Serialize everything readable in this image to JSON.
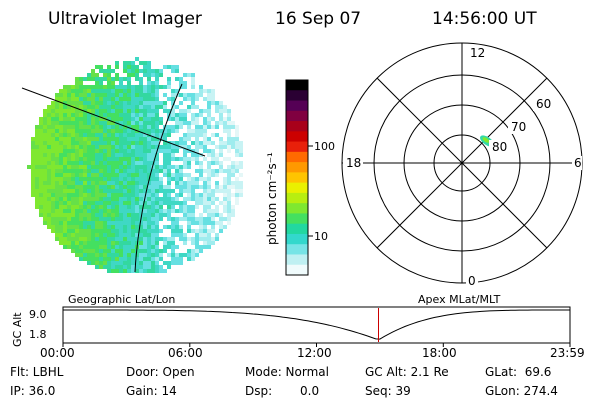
{
  "header": {
    "title": "Ultraviolet Imager",
    "date": "16 Sep 07",
    "time": "14:56:00 UT"
  },
  "colorbar": {
    "unit_label": "photon cm⁻²s⁻¹",
    "ticks": [
      "100",
      "10"
    ],
    "colors": [
      "#000000",
      "#2a0033",
      "#550055",
      "#800040",
      "#a8001a",
      "#cc0000",
      "#e8200a",
      "#ff6a00",
      "#ff9900",
      "#ffc400",
      "#eaf000",
      "#b8ee10",
      "#7fe830",
      "#44e060",
      "#22d8a0",
      "#33d8cc",
      "#77e4e6",
      "#bff0f2",
      "#f0fbfc"
    ]
  },
  "polar": {
    "mlt_labels": [
      "12",
      "18",
      "6",
      "0"
    ],
    "lat_labels": [
      "60",
      "70",
      "80"
    ],
    "accent": "#33d8a8"
  },
  "timeline": {
    "left_caption": "Geographic Lat/Lon",
    "right_caption": "Apex MLat/MLT",
    "yaxis_label": "GC Alt",
    "y_ticks": [
      "9.0",
      "1.8"
    ],
    "x_ticks": [
      "00:00",
      "06:00",
      "12:00",
      "18:00",
      "23:59"
    ],
    "marker_hour": 14.933,
    "marker_color": "#cc0000"
  },
  "status": {
    "flt": "Flt: LBHL",
    "ip": "IP: 36.0",
    "door": "Door: Open",
    "gain": "Gain: 14",
    "mode": "Mode: Normal",
    "dsp_label": "Dsp:",
    "dsp_value": "0.0",
    "gc_alt": "GC Alt: 2.1 Re",
    "seq": "Seq: 39",
    "glat": "GLat:  69.6",
    "glon": "GLon: 274.4"
  }
}
